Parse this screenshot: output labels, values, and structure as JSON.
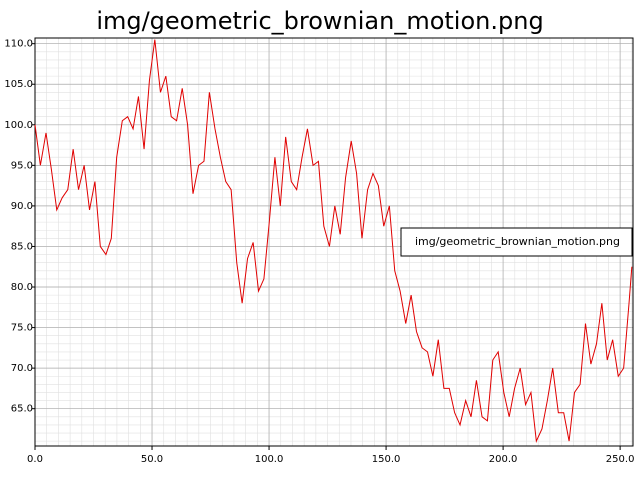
{
  "chart_data": {
    "type": "line",
    "title": "img/geometric_brownian_motion.png",
    "x": [
      0,
      2.3,
      4.7,
      7.0,
      9.3,
      11.6,
      14.0,
      16.3,
      18.6,
      21.0,
      23.3,
      25.6,
      27.9,
      30.3,
      32.6,
      34.9,
      37.3,
      39.6,
      41.9,
      44.2,
      46.6,
      48.9,
      51.2,
      53.6,
      55.9,
      58.2,
      60.5,
      62.9,
      65.2,
      67.5,
      69.9,
      72.2,
      74.5,
      76.9,
      79.2,
      81.5,
      83.8,
      86.2,
      88.5,
      90.8,
      93.2,
      95.5,
      97.8,
      100.1,
      102.5,
      104.8,
      107.1,
      109.5,
      111.8,
      114.1,
      116.4,
      118.8,
      121.1,
      123.4,
      125.8,
      128.1,
      130.4,
      132.7,
      135.1,
      137.4,
      139.7,
      142.1,
      144.4,
      146.7,
      149.0,
      151.4,
      153.7,
      156.0,
      158.4,
      160.7,
      163.0,
      165.4,
      167.7,
      170.0,
      172.3,
      174.7,
      177.0,
      179.3,
      181.6,
      184.0,
      186.3,
      188.6,
      191.0,
      193.3,
      195.6,
      197.9,
      200.3,
      202.6,
      204.9,
      207.3,
      209.6,
      211.9,
      214.2,
      216.6,
      218.9,
      221.2,
      223.6,
      225.9,
      228.2,
      230.5,
      232.9,
      235.2,
      237.5,
      239.9,
      242.2,
      244.5,
      246.8,
      249.2,
      251.5,
      253.8,
      255
    ],
    "series": [
      {
        "name": "img/geometric_brownian_motion.png",
        "color": "#e00000",
        "values": [
          100,
          95,
          99,
          94.5,
          89.5,
          91,
          92,
          97,
          92,
          95,
          89.5,
          93,
          85,
          84,
          86,
          96,
          100.5,
          101,
          99.5,
          103.5,
          97,
          105.5,
          110.5,
          104,
          106,
          101,
          100.5,
          104.5,
          100,
          91.5,
          95,
          95.5,
          104,
          99.5,
          96,
          93,
          92,
          83,
          78,
          83.5,
          85.5,
          79.5,
          81,
          88,
          96,
          90,
          98.5,
          93,
          92,
          96,
          99.5,
          95,
          95.5,
          87.5,
          85,
          90,
          86.5,
          93.5,
          98,
          94,
          86,
          92,
          94,
          92.5,
          87.5,
          90,
          82,
          79.5,
          75.5,
          79,
          74.5,
          72.5,
          72,
          69,
          73.5,
          67.5,
          67.5,
          64.5,
          63,
          66,
          64,
          68.5,
          64,
          63.5,
          71,
          72,
          67,
          64,
          67.5,
          70,
          65.5,
          67,
          61,
          62.5,
          66,
          70,
          64.5,
          64.5,
          61,
          67,
          68,
          75.5,
          70.5,
          73,
          78,
          71,
          73.5,
          69,
          70,
          78,
          82.5
        ]
      }
    ],
    "xlim": [
      0,
      255.5
    ],
    "ylim": [
      60.4,
      110.7
    ],
    "xticks": [
      {
        "value": 0,
        "label": "0.0"
      },
      {
        "value": 50,
        "label": "50.0"
      },
      {
        "value": 100,
        "label": "100.0"
      },
      {
        "value": 150,
        "label": "150.0"
      },
      {
        "value": 200,
        "label": "200.0"
      },
      {
        "value": 250,
        "label": "250.0"
      }
    ],
    "yticks": [
      {
        "value": 65,
        "label": "65.0"
      },
      {
        "value": 70,
        "label": "70.0"
      },
      {
        "value": 75,
        "label": "75.0"
      },
      {
        "value": 80,
        "label": "80.0"
      },
      {
        "value": 85,
        "label": "85.0"
      },
      {
        "value": 90,
        "label": "90.0"
      },
      {
        "value": 95,
        "label": "95.0"
      },
      {
        "value": 100,
        "label": "100.0"
      },
      {
        "value": 105,
        "label": "105.0"
      },
      {
        "value": 110,
        "label": "110.0"
      }
    ],
    "grid": true,
    "legend": "right"
  }
}
